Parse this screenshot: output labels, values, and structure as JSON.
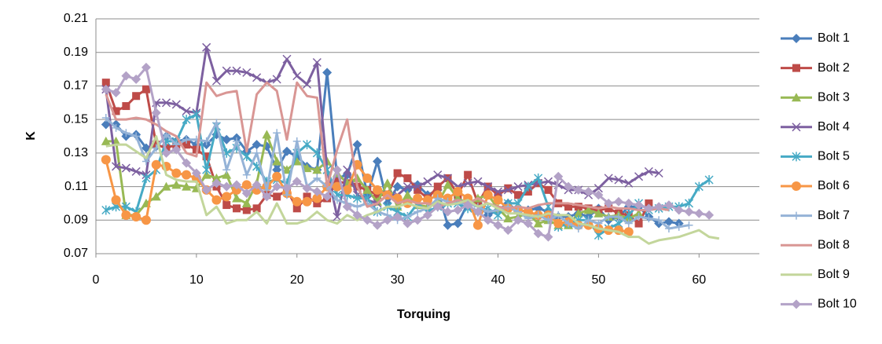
{
  "chart_data": {
    "type": "line",
    "x_label": "Torquing",
    "y_label": "K",
    "xlim": [
      0,
      66
    ],
    "xticks": [
      0,
      10,
      20,
      30,
      40,
      50,
      60
    ],
    "ylim": [
      0.07,
      0.21
    ],
    "yticks": [
      0.07,
      0.09,
      0.11,
      0.13,
      0.15,
      0.17,
      0.19,
      0.21
    ],
    "grid": true,
    "legend": "right",
    "x": [
      1,
      2,
      3,
      4,
      5,
      6,
      7,
      8,
      9,
      10,
      11,
      12,
      13,
      14,
      15,
      16,
      17,
      18,
      19,
      20,
      21,
      22,
      23,
      24,
      25,
      26,
      27,
      28,
      29,
      30,
      31,
      32,
      33,
      34,
      35,
      36,
      37,
      38,
      39,
      40,
      41,
      42,
      43,
      44,
      45,
      46,
      47,
      48,
      49,
      50,
      51,
      52,
      53,
      54,
      55,
      56,
      57,
      58,
      59,
      60,
      61,
      62
    ],
    "series": [
      {
        "name": "Bolt 1",
        "color": "#4a7ebb",
        "marker": "diamond",
        "values": [
          0.147,
          0.147,
          0.14,
          0.141,
          0.133,
          0.134,
          0.14,
          0.137,
          0.138,
          0.135,
          0.135,
          0.141,
          0.138,
          0.139,
          0.131,
          0.135,
          0.134,
          0.12,
          0.131,
          0.128,
          0.122,
          0.12,
          0.178,
          0.115,
          0.117,
          0.135,
          0.105,
          0.125,
          0.1,
          0.11,
          0.108,
          0.111,
          0.105,
          0.108,
          0.087,
          0.088,
          0.1,
          0.1,
          0.093,
          0.096,
          0.1,
          0.095,
          0.096,
          0.097,
          0.095,
          0.092,
          0.092,
          0.094,
          0.092,
          0.097,
          0.09,
          0.092,
          0.098,
          0.098,
          0.092,
          0.088,
          0.089,
          0.088,
          null,
          null,
          null,
          null
        ]
      },
      {
        "name": "Bolt 2",
        "color": "#be4b48",
        "marker": "square",
        "values": [
          0.172,
          0.155,
          0.158,
          0.164,
          0.168,
          0.135,
          0.133,
          0.135,
          0.135,
          0.132,
          0.128,
          0.11,
          0.099,
          0.097,
          0.096,
          0.097,
          0.105,
          0.104,
          0.108,
          0.097,
          0.104,
          0.1,
          0.103,
          0.113,
          0.112,
          0.11,
          0.108,
          0.105,
          0.105,
          0.118,
          0.115,
          0.108,
          0.103,
          0.11,
          0.115,
          0.105,
          0.117,
          0.1,
          0.11,
          0.105,
          0.109,
          0.105,
          0.107,
          0.112,
          0.108,
          0.1,
          0.098,
          0.098,
          0.097,
          0.096,
          0.097,
          0.094,
          0.093,
          0.088,
          0.1,
          null,
          null,
          null,
          null,
          null,
          null,
          null
        ]
      },
      {
        "name": "Bolt 3",
        "color": "#98b954",
        "marker": "triangle",
        "values": [
          0.137,
          0.137,
          0.093,
          0.093,
          0.1,
          0.104,
          0.11,
          0.111,
          0.11,
          0.109,
          0.117,
          0.115,
          0.117,
          0.103,
          0.1,
          0.112,
          0.141,
          0.125,
          0.12,
          0.125,
          0.121,
          0.12,
          0.125,
          0.118,
          0.112,
          0.115,
          0.108,
          0.101,
          0.112,
          0.098,
          0.105,
          0.099,
          0.098,
          0.1,
          0.111,
          0.103,
          0.1,
          0.103,
          0.105,
          0.097,
          0.091,
          0.092,
          0.094,
          0.088,
          0.09,
          0.087,
          0.087,
          0.094,
          0.096,
          0.094,
          0.092,
          0.093,
          0.091,
          0.094,
          null,
          null,
          null,
          null,
          null,
          null,
          null,
          null
        ]
      },
      {
        "name": "Bolt 4",
        "color": "#7d60a0",
        "marker": "cross",
        "values": [
          0.168,
          0.122,
          0.121,
          0.119,
          0.117,
          0.16,
          0.16,
          0.159,
          0.155,
          0.154,
          0.193,
          0.173,
          0.179,
          0.179,
          0.178,
          0.175,
          0.172,
          0.174,
          0.186,
          0.176,
          0.171,
          0.184,
          0.12,
          0.092,
          0.12,
          0.105,
          0.102,
          0.1,
          0.105,
          0.105,
          0.11,
          0.11,
          0.113,
          0.117,
          0.115,
          0.11,
          0.112,
          0.113,
          0.11,
          0.107,
          0.108,
          0.11,
          0.111,
          0.112,
          0.113,
          0.111,
          0.108,
          0.108,
          0.105,
          0.109,
          0.115,
          0.114,
          0.112,
          0.116,
          0.119,
          0.118,
          null,
          null,
          null,
          null,
          null,
          null
        ]
      },
      {
        "name": "Bolt 5",
        "color": "#46aac5",
        "marker": "star",
        "values": [
          0.096,
          0.098,
          0.098,
          0.095,
          0.115,
          0.12,
          0.137,
          0.137,
          0.15,
          0.153,
          0.12,
          0.146,
          0.13,
          0.133,
          0.128,
          0.122,
          0.113,
          0.114,
          0.112,
          0.13,
          0.135,
          0.13,
          0.12,
          0.105,
          0.105,
          0.103,
          0.103,
          0.095,
          0.098,
          0.095,
          0.092,
          0.1,
          0.095,
          0.098,
          0.1,
          0.1,
          0.097,
          0.095,
          0.097,
          0.093,
          0.1,
          0.1,
          0.11,
          0.115,
          0.098,
          0.086,
          0.088,
          0.09,
          0.09,
          0.081,
          0.085,
          0.088,
          0.093,
          0.1,
          0.096,
          0.097,
          0.098,
          0.098,
          0.1,
          0.11,
          0.114,
          null
        ]
      },
      {
        "name": "Bolt 6",
        "color": "#f79646",
        "marker": "circle",
        "values": [
          0.126,
          0.102,
          0.093,
          0.092,
          0.09,
          0.123,
          0.122,
          0.118,
          0.117,
          0.115,
          0.108,
          0.102,
          0.104,
          0.108,
          0.111,
          0.108,
          0.11,
          0.116,
          0.106,
          0.101,
          0.101,
          0.103,
          0.11,
          0.11,
          0.108,
          0.123,
          0.115,
          0.108,
          0.105,
          0.103,
          0.1,
          0.103,
          0.102,
          0.105,
          0.103,
          0.107,
          0.103,
          0.087,
          0.105,
          0.102,
          0.097,
          0.096,
          0.095,
          0.093,
          0.093,
          0.088,
          0.089,
          0.087,
          0.087,
          0.085,
          0.084,
          0.084,
          0.083,
          null,
          null,
          null,
          null,
          null,
          null,
          null,
          null,
          null
        ]
      },
      {
        "name": "Bolt 7",
        "color": "#95b3d7",
        "marker": "plus",
        "values": [
          0.151,
          0.145,
          0.142,
          0.14,
          0.125,
          0.133,
          0.141,
          0.135,
          0.138,
          0.138,
          0.137,
          0.148,
          0.12,
          0.137,
          0.117,
          0.13,
          0.108,
          0.142,
          0.105,
          0.137,
          0.11,
          0.115,
          0.11,
          0.102,
          0.1,
          0.098,
          0.1,
          0.095,
          0.093,
          0.09,
          0.092,
          0.095,
          0.097,
          0.103,
          0.101,
          0.1,
          0.1,
          0.098,
          0.095,
          0.096,
          0.098,
          0.095,
          0.091,
          0.093,
          0.09,
          0.093,
          0.088,
          0.085,
          0.09,
          0.088,
          0.092,
          0.092,
          0.088,
          0.092,
          0.091,
          0.09,
          0.085,
          0.086,
          0.087,
          null,
          null,
          null
        ]
      },
      {
        "name": "Bolt 8",
        "color": "#d99694",
        "marker": "none",
        "values": [
          0.165,
          0.15,
          0.15,
          0.151,
          0.15,
          0.147,
          0.143,
          0.14,
          0.13,
          0.128,
          0.172,
          0.164,
          0.166,
          0.167,
          0.131,
          0.165,
          0.172,
          0.167,
          0.138,
          0.172,
          0.164,
          0.163,
          0.11,
          0.132,
          0.15,
          0.11,
          0.098,
          0.1,
          0.105,
          0.1,
          0.102,
          0.1,
          0.1,
          0.098,
          0.1,
          0.102,
          0.1,
          0.103,
          0.1,
          0.098,
          0.097,
          0.098,
          0.097,
          0.099,
          0.1,
          0.1,
          0.1,
          0.099,
          0.098,
          0.097,
          0.098,
          0.097,
          0.097,
          0.096,
          0.096,
          0.097,
          0.096,
          null,
          null,
          null,
          null,
          null
        ]
      },
      {
        "name": "Bolt 9",
        "color": "#c3d69b",
        "marker": "none",
        "values": [
          0.134,
          0.135,
          0.135,
          0.131,
          0.127,
          0.14,
          0.117,
          0.114,
          0.113,
          0.113,
          0.093,
          0.098,
          0.088,
          0.09,
          0.09,
          0.095,
          0.088,
          0.1,
          0.088,
          0.088,
          0.09,
          0.095,
          0.09,
          0.088,
          0.093,
          0.09,
          0.093,
          0.095,
          0.098,
          0.098,
          0.1,
          0.098,
          0.097,
          0.101,
          0.099,
          0.1,
          0.102,
          0.098,
          0.1,
          0.097,
          0.094,
          0.094,
          0.093,
          0.092,
          0.094,
          0.093,
          0.093,
          0.088,
          0.087,
          0.085,
          0.084,
          0.083,
          0.08,
          0.08,
          0.076,
          0.078,
          0.079,
          0.08,
          0.082,
          0.084,
          0.08,
          0.079
        ]
      },
      {
        "name": "Bolt 10",
        "color": "#b3a2c7",
        "marker": "diamond",
        "values": [
          0.168,
          0.166,
          0.176,
          0.174,
          0.181,
          0.154,
          0.13,
          0.132,
          0.124,
          0.118,
          0.108,
          0.112,
          0.11,
          0.111,
          0.106,
          0.111,
          0.104,
          0.11,
          0.109,
          0.113,
          0.109,
          0.107,
          0.104,
          0.12,
          0.098,
          0.093,
          0.09,
          0.087,
          0.09,
          0.092,
          0.088,
          0.09,
          0.093,
          0.098,
          0.095,
          0.096,
          0.099,
          0.095,
          0.09,
          0.087,
          0.084,
          0.09,
          0.088,
          0.082,
          0.08,
          0.116,
          0.11,
          0.108,
          0.107,
          0.105,
          0.1,
          0.101,
          0.1,
          0.099,
          0.097,
          0.098,
          0.099,
          0.096,
          0.095,
          0.094,
          0.093,
          null
        ]
      }
    ]
  }
}
